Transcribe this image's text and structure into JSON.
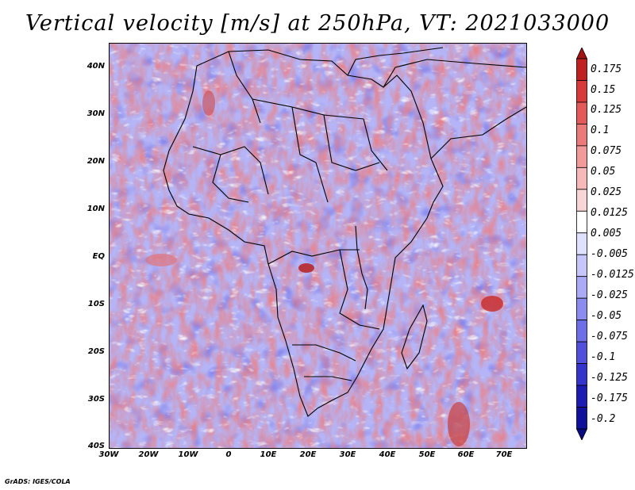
{
  "title": "Vertical velocity [m/s] at 250hPa, VT: 2021033000",
  "credit": "GrADS: IGES/COLA",
  "lat_labels": [
    "40N",
    "30N",
    "20N",
    "10N",
    "EQ",
    "10S",
    "20S",
    "30S",
    "40S"
  ],
  "lon_labels": [
    "30W",
    "20W",
    "10W",
    "0",
    "10E",
    "20E",
    "30E",
    "40E",
    "50E",
    "60E",
    "70E"
  ],
  "colorbar": {
    "labels": [
      "0.175",
      "0.15",
      "0.125",
      "0.1",
      "0.075",
      "0.05",
      "0.025",
      "0.0125",
      "0.005",
      "-0.005",
      "-0.0125",
      "-0.025",
      "-0.05",
      "-0.075",
      "-0.1",
      "-0.125",
      "-0.175",
      "-0.2"
    ],
    "colors": [
      "#a01414",
      "#c02020",
      "#d83a3a",
      "#e45a5a",
      "#ec7a7a",
      "#f29a9a",
      "#f6b8b8",
      "#f9d6d6",
      "#ffffff",
      "#e0e0ff",
      "#c6c6fb",
      "#aaaaf6",
      "#8c8cf0",
      "#6e6ee8",
      "#5050dc",
      "#3434cc",
      "#1c1cb4",
      "#10109a",
      "#0a0a80"
    ]
  }
}
